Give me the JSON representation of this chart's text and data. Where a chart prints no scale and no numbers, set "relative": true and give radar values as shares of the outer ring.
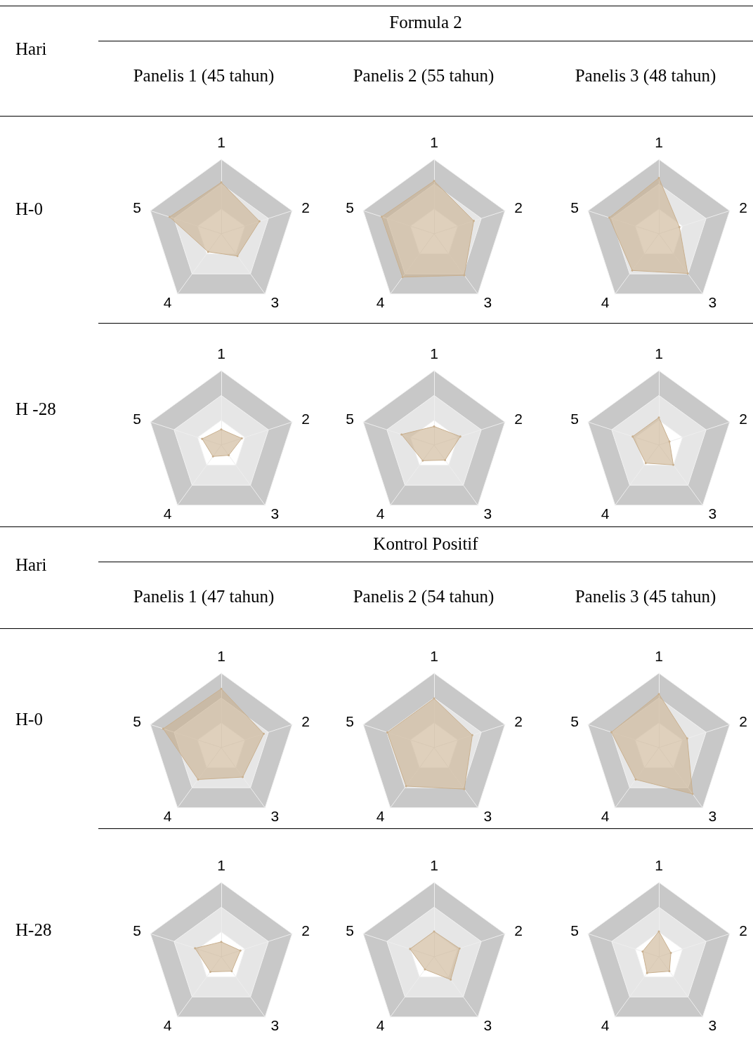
{
  "chart_data": [
    {
      "type": "other",
      "title": "Formula 2",
      "annotations": [
        "Hari",
        "Panelis 1 (45 tahun)",
        "Panelis 2 (55 tahun)",
        "Panelis 3 (48 tahun)",
        "H-0",
        "H -28"
      ]
    },
    {
      "type": "radar",
      "relative": true,
      "categories": [
        "1",
        "2",
        "3",
        "4",
        "5"
      ],
      "series": [
        {
          "color": "#c9b08f",
          "values": [
            0.69,
            0.54,
            0.37,
            0.3,
            0.73
          ]
        }
      ]
    },
    {
      "type": "radar",
      "relative": true,
      "categories": [
        "1",
        "2",
        "3",
        "4",
        "5"
      ],
      "series": [
        {
          "color": "#c9b08f",
          "values": [
            0.71,
            0.56,
            0.69,
            0.72,
            0.74
          ]
        }
      ]
    },
    {
      "type": "radar",
      "relative": true,
      "categories": [
        "1",
        "2",
        "3",
        "4",
        "5"
      ],
      "series": [
        {
          "color": "#c9b08f",
          "values": [
            0.75,
            0.29,
            0.66,
            0.61,
            0.7
          ]
        }
      ]
    },
    {
      "type": "radar",
      "relative": true,
      "categories": [
        "1",
        "2",
        "3",
        "4",
        "5"
      ],
      "series": [
        {
          "color": "#c9b08f",
          "values": [
            0.21,
            0.29,
            0.17,
            0.19,
            0.27
          ]
        }
      ]
    },
    {
      "type": "radar",
      "relative": true,
      "categories": [
        "1",
        "2",
        "3",
        "4",
        "5"
      ],
      "series": [
        {
          "color": "#c9b08f",
          "values": [
            0.25,
            0.37,
            0.25,
            0.26,
            0.46
          ]
        }
      ]
    },
    {
      "type": "radar",
      "relative": true,
      "categories": [
        "1",
        "2",
        "3",
        "4",
        "5"
      ],
      "series": [
        {
          "color": "#c9b08f",
          "values": [
            0.37,
            0.15,
            0.33,
            0.3,
            0.37
          ]
        }
      ]
    },
    {
      "type": "other",
      "title": "Kontrol Positif",
      "annotations": [
        "Hari",
        "Panelis 1 (47 tahun)",
        "Panelis 2 (54 tahun)",
        "Panelis 3 (45 tahun)",
        "H-0",
        "H-28"
      ]
    },
    {
      "type": "radar",
      "relative": true,
      "categories": [
        "1",
        "2",
        "3",
        "4",
        "5"
      ],
      "series": [
        {
          "color": "#c9b08f",
          "values": [
            0.79,
            0.6,
            0.49,
            0.53,
            0.82
          ]
        }
      ]
    },
    {
      "type": "radar",
      "relative": true,
      "categories": [
        "1",
        "2",
        "3",
        "4",
        "5"
      ],
      "series": [
        {
          "color": "#c9b08f",
          "values": [
            0.66,
            0.54,
            0.69,
            0.64,
            0.66
          ]
        }
      ]
    },
    {
      "type": "radar",
      "relative": true,
      "categories": [
        "1",
        "2",
        "3",
        "4",
        "5"
      ],
      "series": [
        {
          "color": "#c9b08f",
          "values": [
            0.72,
            0.4,
            0.77,
            0.53,
            0.67
          ]
        }
      ]
    },
    {
      "type": "radar",
      "relative": true,
      "categories": [
        "1",
        "2",
        "3",
        "4",
        "5"
      ],
      "series": [
        {
          "color": "#c9b08f",
          "values": [
            0.2,
            0.27,
            0.24,
            0.25,
            0.37
          ]
        }
      ]
    },
    {
      "type": "radar",
      "relative": true,
      "categories": [
        "1",
        "2",
        "3",
        "4",
        "5"
      ],
      "series": [
        {
          "color": "#c9b08f",
          "values": [
            0.34,
            0.36,
            0.38,
            0.21,
            0.34
          ]
        }
      ]
    },
    {
      "type": "radar",
      "relative": true,
      "categories": [
        "1",
        "2",
        "3",
        "4",
        "5"
      ],
      "series": [
        {
          "color": "#c9b08f",
          "values": [
            0.34,
            0.17,
            0.24,
            0.27,
            0.23
          ]
        }
      ]
    }
  ]
}
